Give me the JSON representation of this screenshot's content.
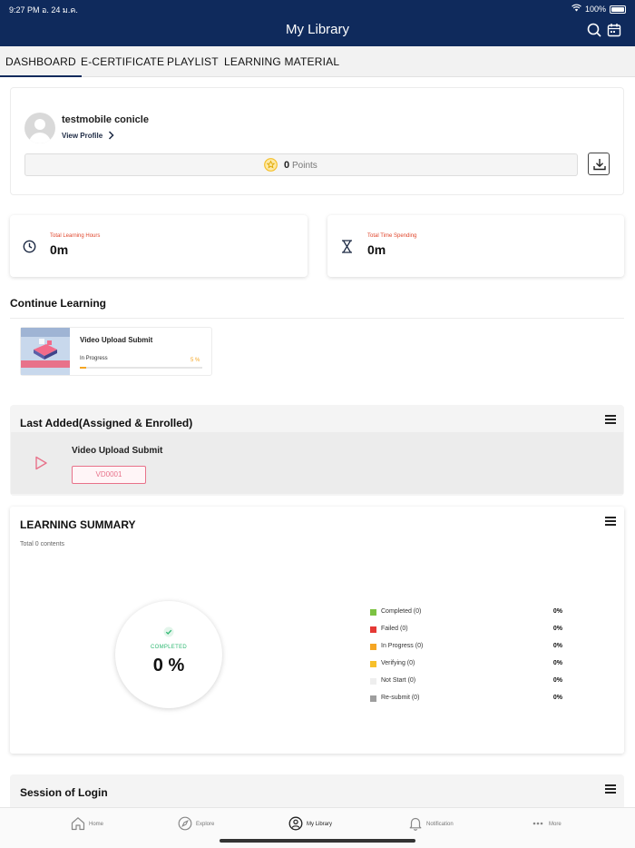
{
  "status": {
    "time": "9:27 PM  อ. 24 ม.ค.",
    "battery": "100%"
  },
  "header": {
    "title": "My Library"
  },
  "tabs": [
    {
      "label": "DASHBOARD",
      "active": true
    },
    {
      "label": "E-CERTIFICATE",
      "active": false
    },
    {
      "label": "PLAYLIST",
      "active": false
    },
    {
      "label": "LEARNING MATERIAL",
      "active": false
    }
  ],
  "profile": {
    "name": "testmobile conicle",
    "view_profile": "View Profile",
    "points_value": "0",
    "points_label": "Points"
  },
  "stats": [
    {
      "label": "Total Learning Hours",
      "value": "0m",
      "icon": "clock-icon"
    },
    {
      "label": "Total Time Spending",
      "value": "0m",
      "icon": "hourglass-icon"
    }
  ],
  "continue_learning": {
    "title": "Continue Learning",
    "item": {
      "title": "Video Upload Submit",
      "status": "In Progress",
      "percent_text": "5 %",
      "progress": 0.05
    }
  },
  "last_added": {
    "title": "Last Added(Assigned & Enrolled)",
    "item": {
      "title": "Video Upload Submit",
      "code": "VD0001"
    }
  },
  "learning_summary": {
    "title": "LEARNING SUMMARY",
    "total": "Total 0 contents",
    "completed_label": "COMPLETED",
    "completed_value": "0 %",
    "legend": [
      {
        "label": "Completed (0)",
        "pct": "0%",
        "color": "#7cc242"
      },
      {
        "label": "Failed (0)",
        "pct": "0%",
        "color": "#e53935"
      },
      {
        "label": "In Progress (0)",
        "pct": "0%",
        "color": "#f5a623"
      },
      {
        "label": "Verifying (0)",
        "pct": "0%",
        "color": "#f7c02b"
      },
      {
        "label": "Not Start (0)",
        "pct": "0%",
        "color": "#eeeeee"
      },
      {
        "label": "Re-submit (0)",
        "pct": "0%",
        "color": "#9e9e9e"
      }
    ]
  },
  "session": {
    "title": "Session of Login"
  },
  "bottom_nav": [
    {
      "label": "Home",
      "icon": "home-icon",
      "active": false
    },
    {
      "label": "Explore",
      "icon": "compass-icon",
      "active": false
    },
    {
      "label": "My Library",
      "icon": "library-icon",
      "active": true
    },
    {
      "label": "Notification",
      "icon": "bell-icon",
      "active": false
    },
    {
      "label": "More",
      "icon": "more-icon",
      "active": false
    }
  ],
  "colors": {
    "header": "#0f2a5c",
    "accent_red": "#e0452b",
    "progress": "#f5a623",
    "code_pink": "#e8728a"
  }
}
